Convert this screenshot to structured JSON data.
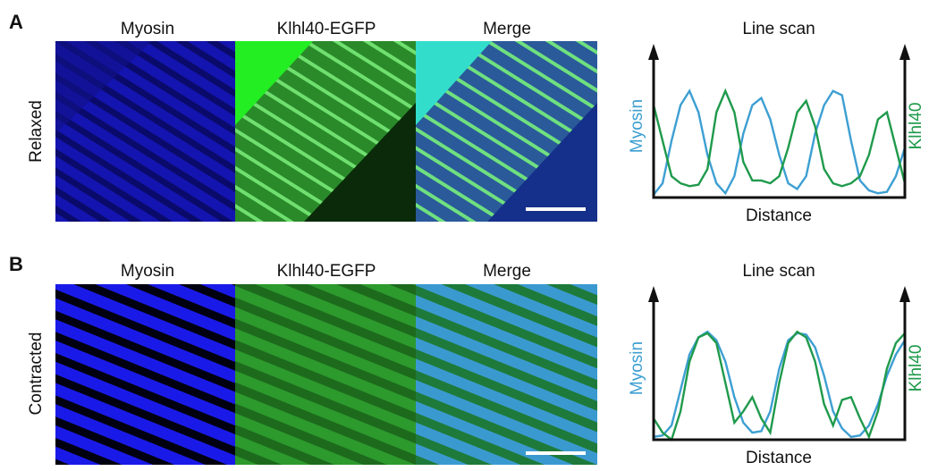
{
  "panels": [
    {
      "label": "A",
      "condition": "Relaxed",
      "columns": [
        "Myosin",
        "Klhl40-EGFP",
        "Merge"
      ],
      "line_scan": {
        "title": "Line scan",
        "x_label": "Distance",
        "left_label": "Myosin",
        "right_label": "Klhl40",
        "left_color": "#3d9fd2",
        "right_color": "#1f9a4c",
        "myosin_values": [
          2,
          10,
          40,
          65,
          75,
          60,
          30,
          10,
          3,
          15,
          45,
          65,
          70,
          55,
          30,
          10,
          6,
          15,
          45,
          65,
          75,
          72,
          40,
          12,
          5,
          3,
          4,
          15,
          35
        ],
        "klhl40_values": [
          65,
          40,
          15,
          10,
          8,
          9,
          20,
          60,
          75,
          60,
          25,
          12,
          12,
          10,
          15,
          35,
          60,
          68,
          50,
          20,
          10,
          8,
          10,
          15,
          30,
          55,
          60,
          35,
          10
        ]
      }
    },
    {
      "label": "B",
      "condition": "Contracted",
      "columns": [
        "Myosin",
        "Klhl40-EGFP",
        "Merge"
      ],
      "line_scan": {
        "title": "Line scan",
        "x_label": "Distance",
        "left_label": "Myosin",
        "right_label": "Klhl40",
        "left_color": "#3d9fd2",
        "right_color": "#1f9a4c",
        "myosin_values": [
          2,
          3,
          10,
          35,
          60,
          72,
          76,
          70,
          55,
          30,
          12,
          5,
          6,
          20,
          50,
          70,
          75,
          74,
          65,
          45,
          20,
          8,
          2,
          3,
          10,
          25,
          45,
          60,
          70
        ],
        "klhl40_values": [
          15,
          5,
          0,
          20,
          55,
          72,
          75,
          68,
          40,
          12,
          20,
          30,
          15,
          5,
          40,
          68,
          76,
          72,
          55,
          25,
          10,
          28,
          30,
          15,
          2,
          20,
          50,
          68,
          75
        ]
      }
    }
  ]
}
